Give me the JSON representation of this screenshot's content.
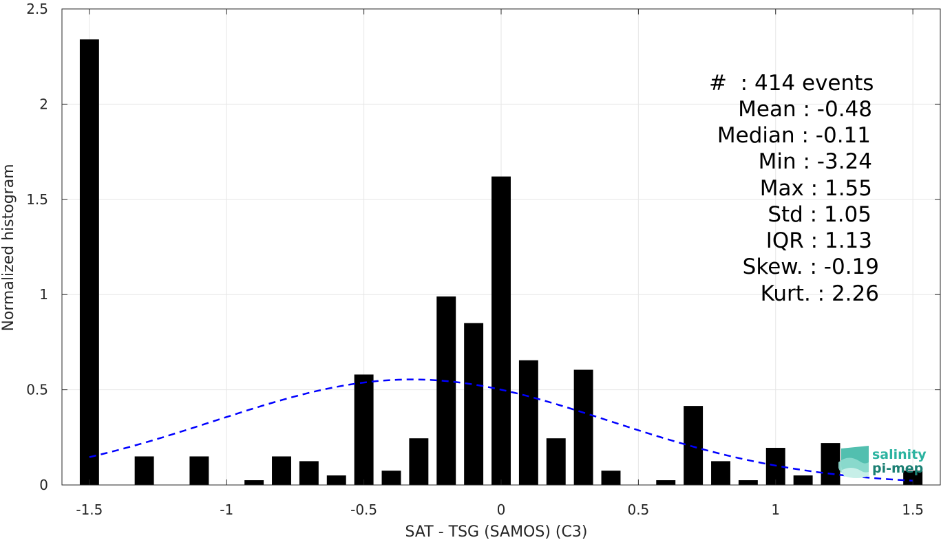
{
  "chart_data": {
    "type": "bar",
    "xlabel": "SAT - TSG (SAMOS) (C3)",
    "ylabel": "Normalized histogram",
    "xlim": [
      -1.6,
      1.6
    ],
    "ylim": [
      0,
      2.5
    ],
    "x_ticks": [
      -1.5,
      -1,
      -0.5,
      0,
      0.5,
      1,
      1.5
    ],
    "x_tick_labels": [
      "-1.5",
      "-1",
      "-0.5",
      "0",
      "0.5",
      "1",
      "1.5"
    ],
    "y_ticks": [
      0,
      0.5,
      1,
      1.5,
      2,
      2.5
    ],
    "y_tick_labels": [
      "0",
      "0.5",
      "1",
      "1.5",
      "2",
      "2.5"
    ],
    "grid": true,
    "bar_color": "#000000",
    "fit_color": "#0000ff",
    "bar_width": 0.07,
    "bars": [
      {
        "x": -1.5,
        "y": 2.34
      },
      {
        "x": -1.3,
        "y": 0.15
      },
      {
        "x": -1.1,
        "y": 0.15
      },
      {
        "x": -0.9,
        "y": 0.025
      },
      {
        "x": -0.8,
        "y": 0.15
      },
      {
        "x": -0.7,
        "y": 0.125
      },
      {
        "x": -0.6,
        "y": 0.05
      },
      {
        "x": -0.5,
        "y": 0.58
      },
      {
        "x": -0.4,
        "y": 0.075
      },
      {
        "x": -0.3,
        "y": 0.245
      },
      {
        "x": -0.2,
        "y": 0.99
      },
      {
        "x": -0.1,
        "y": 0.85
      },
      {
        "x": 0.0,
        "y": 1.62
      },
      {
        "x": 0.1,
        "y": 0.655
      },
      {
        "x": 0.2,
        "y": 0.245
      },
      {
        "x": 0.3,
        "y": 0.605
      },
      {
        "x": 0.4,
        "y": 0.075
      },
      {
        "x": 0.6,
        "y": 0.025
      },
      {
        "x": 0.7,
        "y": 0.415
      },
      {
        "x": 0.8,
        "y": 0.125
      },
      {
        "x": 0.9,
        "y": 0.025
      },
      {
        "x": 1.0,
        "y": 0.195
      },
      {
        "x": 1.1,
        "y": 0.05
      },
      {
        "x": 1.2,
        "y": 0.22
      },
      {
        "x": 1.5,
        "y": 0.075
      }
    ],
    "fit": {
      "type": "normal",
      "mean": -0.325,
      "std": 0.72,
      "x_range": [
        -1.5,
        1.5
      ],
      "style": "dashed"
    },
    "stats_lines": [
      "#  : 414 events",
      "Mean : -0.48",
      "Median : -0.11",
      "Min : -3.24",
      "Max : 1.55",
      "Std : 1.05",
      "IQR : 1.13",
      "Skew. : -0.19",
      "Kurt. : 2.26"
    ]
  },
  "logo": {
    "line1": "salinity",
    "line2": "pi-mep",
    "color1": "#2bb3a0",
    "color2": "#1b7f73"
  }
}
